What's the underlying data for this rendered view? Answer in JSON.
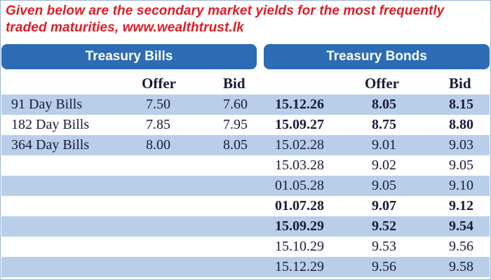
{
  "caption": {
    "line1": "Given below are the secondary market yields for the most frequently",
    "line2": "traded maturities, www.wealthtrust.lk"
  },
  "headers": {
    "bills": "Treasury Bills",
    "bonds": "Treasury Bonds"
  },
  "columns": {
    "bills_offer": "Offer",
    "bills_bid": "Bid",
    "bonds_offer": "Offer",
    "bonds_bid": "Bid"
  },
  "bills": [
    {
      "name": "91 Day Bills",
      "offer": "7.50",
      "bid": "7.60"
    },
    {
      "name": "182 Day Bills",
      "offer": "7.85",
      "bid": "7.95"
    },
    {
      "name": "364 Day Bills",
      "offer": "8.00",
      "bid": "8.05"
    }
  ],
  "bonds": [
    {
      "maturity": "15.12.26",
      "offer": "8.05",
      "bid": "8.15",
      "bold": true
    },
    {
      "maturity": "15.09.27",
      "offer": "8.75",
      "bid": "8.80",
      "bold": true
    },
    {
      "maturity": "15.02.28",
      "offer": "9.01",
      "bid": "9.03",
      "bold": false
    },
    {
      "maturity": "15.03.28",
      "offer": "9.02",
      "bid": "9.05",
      "bold": false
    },
    {
      "maturity": "01.05.28",
      "offer": "9.05",
      "bid": "9.10",
      "bold": false
    },
    {
      "maturity": "01.07.28",
      "offer": "9.07",
      "bid": "9.12",
      "bold": true
    },
    {
      "maturity": "15.09.29",
      "offer": "9.52",
      "bid": "9.54",
      "bold": true
    },
    {
      "maturity": "15.10.29",
      "offer": "9.53",
      "bid": "9.56",
      "bold": false
    },
    {
      "maturity": "15.12.29",
      "offer": "9.56",
      "bid": "9.58",
      "bold": false
    }
  ],
  "colors": {
    "caption": "#e21b23",
    "header_bg": "#2d6cb5",
    "row_shade": "#b9cfe9"
  }
}
